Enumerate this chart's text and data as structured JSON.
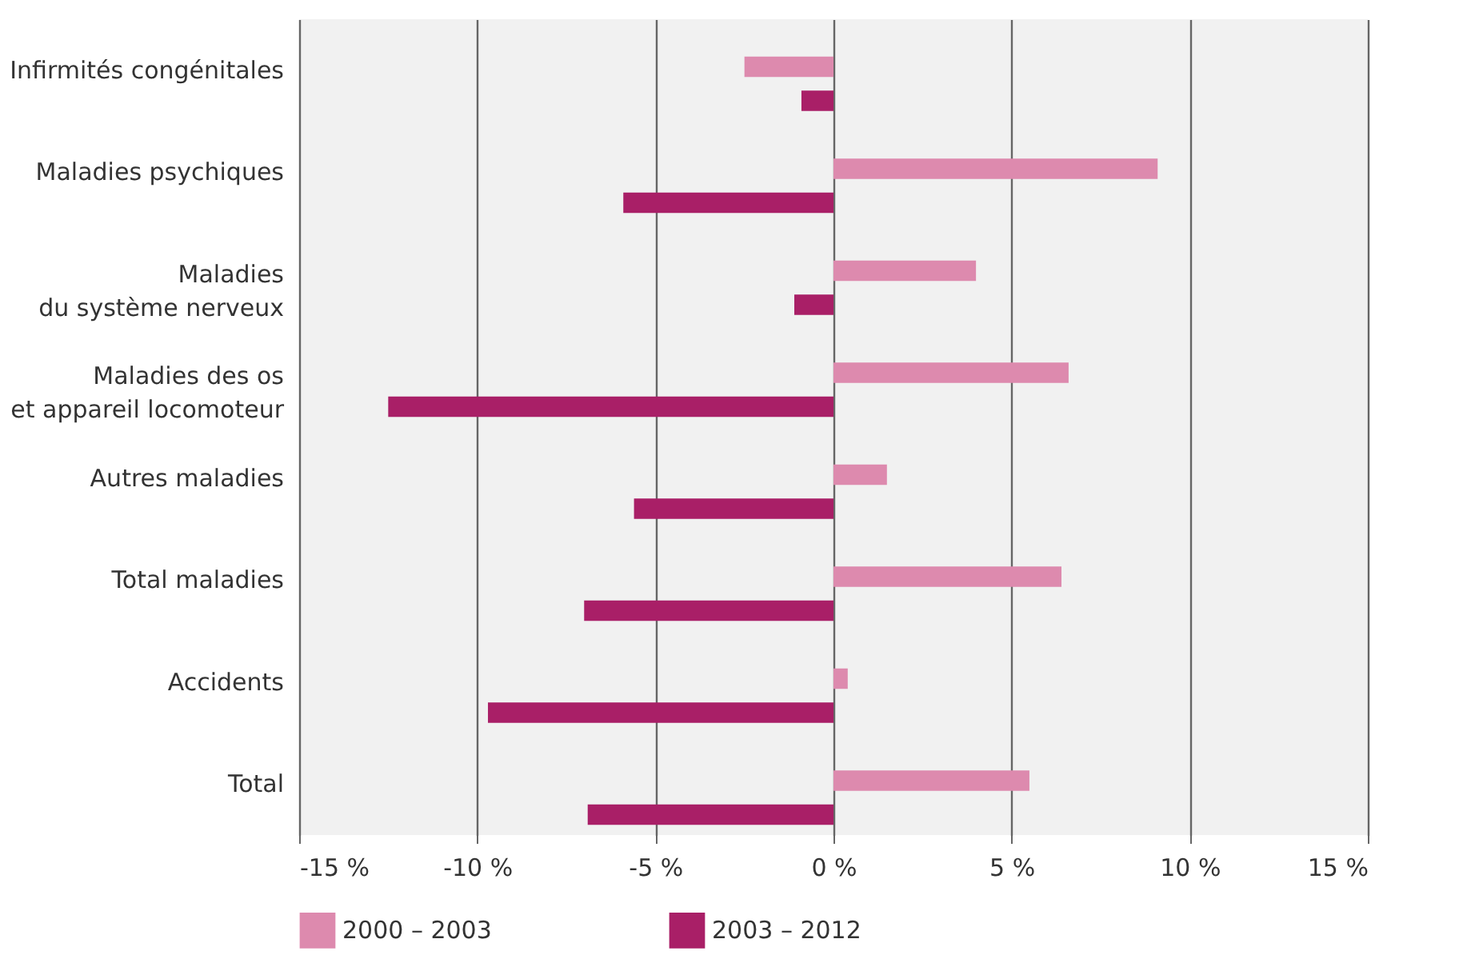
{
  "chart_data": {
    "type": "bar",
    "orientation": "horizontal",
    "categories": [
      "Infirmités congénitales",
      "Maladies psychiques",
      "Maladies\ndu système nerveux",
      "Maladies des os\net appareil locomoteur",
      "Autres maladies",
      "Total maladies",
      "Accidents",
      "Total"
    ],
    "series": [
      {
        "name": "2000 – 2003",
        "color": "#dd8aae",
        "values": [
          -2.5,
          9.1,
          4.0,
          6.6,
          1.5,
          6.4,
          0.4,
          5.5
        ]
      },
      {
        "name": "2003 – 2012",
        "color": "#a91f67",
        "values": [
          -0.9,
          -5.9,
          -1.1,
          -12.5,
          -5.6,
          -7.0,
          -9.7,
          -6.9
        ]
      }
    ],
    "xlim": [
      -15,
      15
    ],
    "xticks": [
      {
        "value": -15,
        "label": "-15 %"
      },
      {
        "value": -10,
        "label": "-10 %"
      },
      {
        "value": -5,
        "label": "-5 %"
      },
      {
        "value": 0,
        "label": "0 %"
      },
      {
        "value": 5,
        "label": "5 %"
      },
      {
        "value": 10,
        "label": "10 %"
      },
      {
        "value": 15,
        "label": "15 %"
      }
    ],
    "grid": "x",
    "legend": "bottom"
  }
}
